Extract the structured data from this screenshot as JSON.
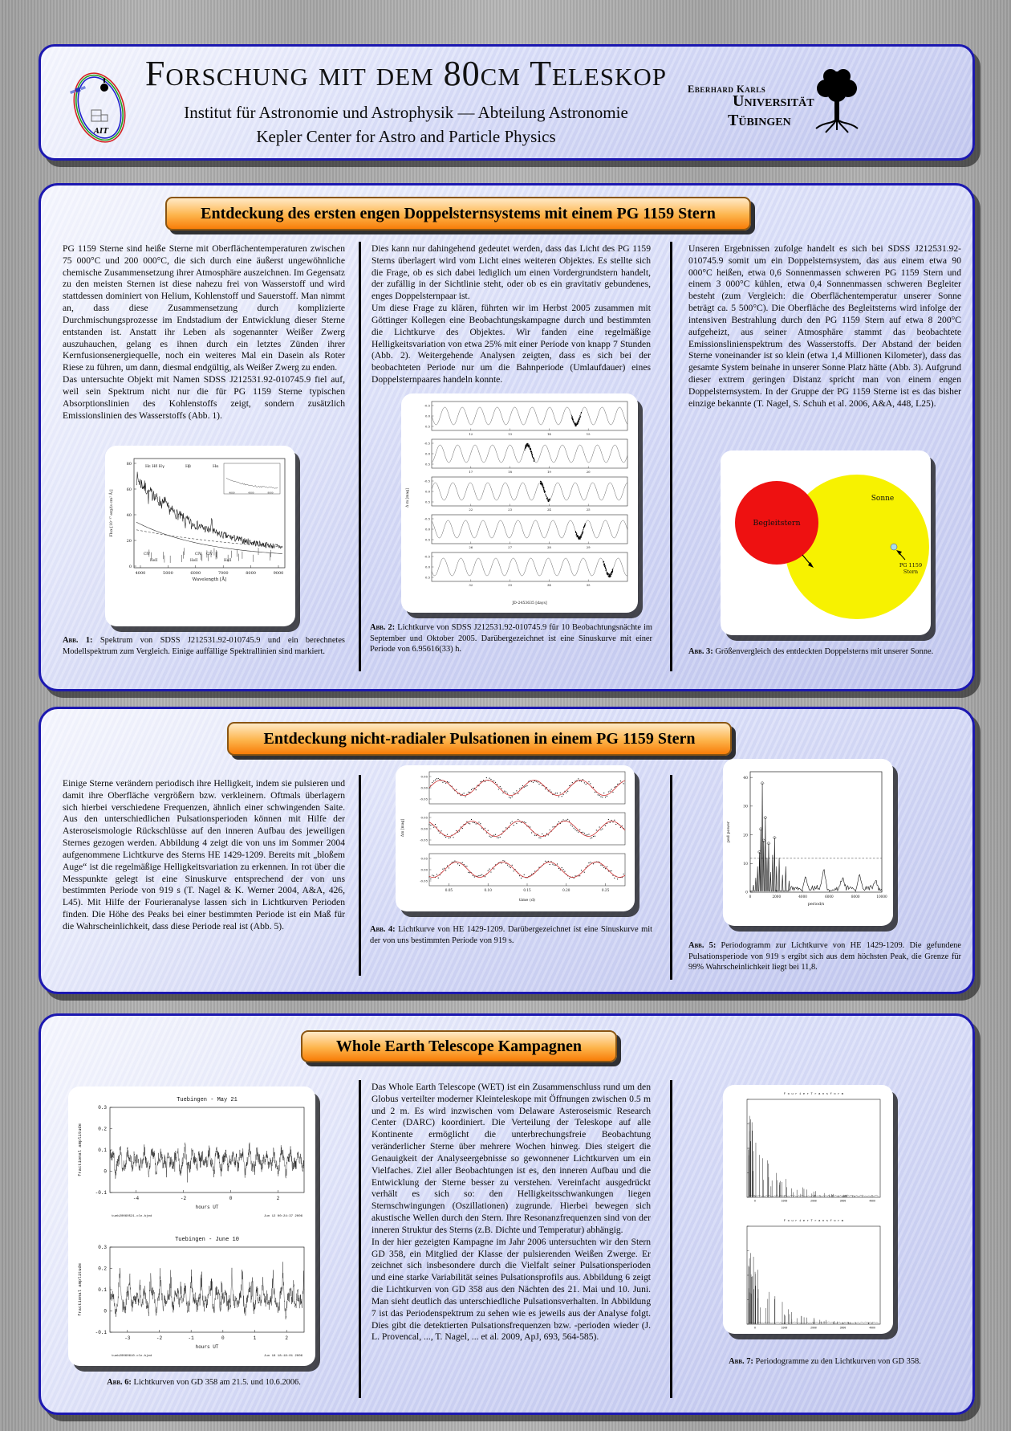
{
  "header": {
    "title": "Forschung mit dem 80cm Teleskop",
    "subtitle1": "Institut für Astronomie und Astrophysik — Abteilung Astronomie",
    "subtitle2": "Kepler Center for Astro and Particle Physics",
    "university": {
      "line1": "Eberhard Karls",
      "line2": "Universität",
      "line3": "Tübingen"
    }
  },
  "section1": {
    "banner": "Entdeckung des ersten engen Doppelsternsystems mit einem PG 1159 Stern",
    "col1": {
      "p1": "PG 1159 Sterne sind heiße Sterne mit Oberflächentemperaturen zwischen 75 000°C und 200 000°C, die sich durch eine äußerst ungewöhnliche chemische Zusammensetzung ihrer Atmosphäre auszeichnen. Im Gegensatz zu den meisten Sternen ist diese nahezu frei von Wasserstoff und wird stattdessen dominiert von Helium, Kohlenstoff und Sauerstoff. Man nimmt an, dass diese Zusammensetzung durch komplizierte Durchmischungsprozesse im Endstadium der Entwicklung dieser Sterne entstanden ist. Anstatt ihr Leben als sogenannter Weißer Zwerg auszuhauchen, gelang es ihnen durch ein letztes Zünden ihrer Kernfusionsenergiequelle, noch ein weiteres Mal ein Dasein als Roter Riese zu führen, um dann, diesmal endgültig, als Weißer Zwerg zu enden.",
      "p2": "Das untersuchte Objekt mit Namen SDSS J212531.92-010745.9 fiel auf, weil sein Spektrum nicht nur die für PG 1159 Sterne typischen Absorptionslinien des Kohlenstoffs zeigt, sondern zusätzlich Emissionslinien des Wasserstoffs (Abb. 1)."
    },
    "col2": {
      "p1": "Dies kann nur dahingehend gedeutet werden, dass das Licht des PG 1159 Sterns überlagert wird vom Licht eines weiteren Objektes. Es stellte sich die Frage, ob es sich dabei lediglich um einen Vordergrundstern handelt, der zufällig in der Sichtlinie steht, oder ob es ein gravitativ gebundenes, enges Doppelsternpaar ist.",
      "p2": "Um diese Frage zu klären, führten wir im Herbst 2005 zusammen mit Göttinger Kollegen eine Beobachtungskampagne durch und bestimmten die Lichtkurve des Objektes. Wir fanden eine regelmäßige Helligkeitsvariation von etwa 25% mit einer Periode von knapp 7 Stunden (Abb. 2). Weitergehende Analysen zeigten, dass es sich bei der beobachteten Periode nur um die Bahnperiode (Umlaufdauer) eines Doppelsternpaares handeln konnte."
    },
    "col3": {
      "p1": "Unseren Ergebnissen zufolge handelt es sich bei SDSS J212531.92-010745.9 somit um ein Doppelsternsystem, das aus einem etwa 90 000°C heißen, etwa 0,6 Sonnenmassen schweren PG 1159 Stern und einem 3 000°C kühlen, etwa 0,4 Sonnenmassen schweren Begleiter besteht (zum Vergleich: die Oberflächentemperatur unserer Sonne beträgt ca. 5 500°C). Die Oberfläche des Begleitsterns wird infolge der intensiven Bestrahlung durch den PG 1159 Stern auf etwa 8 200°C aufgeheizt, aus seiner Atmosphäre stammt das beobachtete Emissionslinienspektrum des Wasserstoffs. Der Abstand der beiden Sterne voneinander ist so klein (etwa 1,4 Millionen Kilometer), dass das gesamte System beinahe in unserer Sonne Platz hätte (Abb. 3). Aufgrund dieser extrem geringen Distanz spricht man von einem engen Doppelsternsystem. In der Gruppe der PG 1159 Sterne ist es das bisher einzige bekannte (T. Nagel, S. Schuh et al. 2006, A&A, 448, L25)."
    },
    "fig1": {
      "label": "Abb. 1:",
      "caption": "Spektrum von SDSS J212531.92-010745.9 und ein berechnetes Modellspektrum zum Vergleich. Einige auffällige Spektrallinien sind markiert.",
      "xlabel": "Wavelength [Å]",
      "ylabel": "Flux [10⁻¹⁷ erg/(s cm² Å)]",
      "xticks": [
        "4000",
        "5000",
        "6000",
        "7000",
        "8000",
        "9000"
      ],
      "yticks": [
        "0",
        "20",
        "40",
        "60",
        "80"
      ],
      "top_labels": [
        "Hε Hδ Hγ",
        "Hβ",
        "Hα"
      ],
      "civ_labels": [
        "CIV",
        "CIV",
        "CIV"
      ],
      "heii_labels": [
        "HeII",
        "HeII",
        "HeII"
      ]
    },
    "fig2": {
      "label": "Abb. 2:",
      "caption": "Lichtkurve von SDSS J212531.92-010745.9 für 10 Beobachtungsnächte im September und Oktober 2005. Darübergezeichnet ist eine Sinuskurve mit einer Periode von 6.95616(33) h.",
      "xlabel": "JD-2453635 [days]",
      "ylabel": "Δ m [mag]",
      "yticks": [
        "-0.5",
        "0.0",
        "0.5"
      ],
      "row_ticks": [
        [
          "12",
          "13",
          "14",
          "15"
        ],
        [
          "17",
          "18",
          "19",
          "20"
        ],
        [
          "22",
          "23",
          "24",
          "25"
        ],
        [
          "26",
          "27",
          "28",
          "29"
        ],
        [
          "32",
          "33",
          "34",
          "35"
        ]
      ]
    },
    "fig3": {
      "label": "Abb. 3:",
      "caption": "Größenvergleich des entdeckten Doppelsterns mit unserer Sonne.",
      "sun_label": "Sonne",
      "companion_label": "Begleitstern",
      "pg_label1": "PG 1159",
      "pg_label2": "Stern",
      "sun_color": "#f7f200",
      "companion_color": "#ee1111",
      "pg_color": "#a8dce8"
    }
  },
  "section2": {
    "banner": "Entdeckung nicht-radialer Pulsationen in einem PG 1159 Stern",
    "col1": {
      "p1": "Einige Sterne verändern periodisch ihre Helligkeit, indem sie pulsieren und damit ihre Oberfläche vergrößern bzw. verkleinern. Oftmals überlagern sich hierbei verschiedene Frequenzen, ähnlich einer schwingenden Saite. Aus den unterschiedlichen Pulsationsperioden können mit Hilfe der Asteroseismologie Rückschlüsse auf den inneren Aufbau des jeweiligen Sternes gezogen werden. Abbildung 4 zeigt die von uns im Sommer 2004 aufgenommene Lichtkurve des Sterns HE 1429-1209. Bereits mit „bloßem Auge“ ist die regelmäßige Helligkeitsvariation zu erkennen. In rot über die Messpunkte gelegt ist eine Sinuskurve entsprechend der von uns bestimmten Periode von 919 s (T. Nagel & K. Werner 2004, A&A, 426, L45). Mit Hilfe der Fourieranalyse lassen sich in Lichtkurven Perioden finden. Die Höhe des Peaks bei einer bestimmten Periode ist ein Maß für die Wahrscheinlichkeit, dass diese Periode real ist (Abb. 5)."
    },
    "fig4": {
      "label": "Abb. 4:",
      "caption": "Lichtkurve von HE 1429-1209. Darübergezeichnet ist eine Sinuskurve mit der von uns bestimmten Periode von 919 s.",
      "xlabel": "time (d)",
      "ylabel": "Δm [mag]",
      "xticks": [
        "0.05",
        "0.10",
        "0.15",
        "0.20",
        "0.25"
      ],
      "yticks": [
        "0.05",
        "0.00",
        "-0.05"
      ]
    },
    "fig5": {
      "label": "Abb. 5:",
      "caption": "Periodogramm zur Lichtkurve von HE 1429-1209. Die gefundene Pulsationsperiode von 919 s ergibt sich aus dem höchsten Peak, die Grenze für 99% Wahrscheinlichkeit liegt bei 11,8.",
      "xlabel": "period/s",
      "ylabel": "psd power",
      "xticks": [
        "0",
        "2000",
        "4000",
        "6000",
        "8000",
        "10000"
      ],
      "yticks": [
        "0",
        "10",
        "20",
        "30",
        "40"
      ]
    }
  },
  "section3": {
    "banner": "Whole Earth Telescope Kampagnen",
    "col2": {
      "p1": "Das Whole Earth Telescope (WET) ist ein Zusammenschluss rund um den Globus verteilter moderner Kleinteleskope mit Öffnungen zwischen 0.5 m und 2 m. Es wird inzwischen vom Delaware Asteroseismic Research Center (DARC) koordiniert. Die Verteilung der Teleskope auf alle Kontinente ermöglicht die unterbrechungsfreie Beobachtung veränderlicher Sterne über mehrere Wochen hinweg. Dies steigert die Genauigkeit der Analyseergebnisse so gewonnener Lichtkurven um ein Vielfaches. Ziel aller Beobachtungen ist es, den inneren Aufbau und die Entwicklung der Sterne besser zu verstehen. Vereinfacht ausgedrückt verhält es sich so: den Helligkeitsschwankungen liegen Sternschwingungen (Oszillationen) zugrunde. Hierbei bewegen sich akustische Wellen durch den Stern. Ihre Resonanzfrequenzen sind von der inneren Struktur des Sterns (z.B. Dichte und Temperatur) abhängig.",
      "p2": "In der hier gezeigten Kampagne im Jahr 2006 untersuchten wir den Stern GD 358, ein Mitglied der Klasse der pulsierenden Weißen Zwerge. Er zeichnet sich insbesondere durch die Vielfalt seiner Pulsationsperioden und eine starke Variabilität seines Pulsationsprofils aus. Abbildung 6 zeigt die Lichtkurven von GD 358 aus den Nächten des 21. Mai und 10. Juni. Man sieht deutlich das unterschiedliche Pulsationsverhalten. In Abbildung 7 ist das Periodenspektrum zu sehen wie es jeweils aus der Analyse folgt. Dies gibt die detektierten Pulsationsfrequenzen bzw. -perioden wieder (J. L. Provencal, ..., T. Nagel, ... et al. 2009, ApJ, 693, 564-585)."
    },
    "fig6": {
      "label": "Abb. 6:",
      "caption": "Lichtkurven von GD 358 am 21.5. und 10.6.2006.",
      "xlabel": "hours UT",
      "ylabel": "fractional amplitude",
      "yticks": [
        "0.3",
        "0.2",
        "0.1",
        "0",
        "-0.1"
      ],
      "panelA": {
        "title": "Tuebingen  - May 21",
        "xticks": [
          "-4",
          "-2",
          "0",
          "2"
        ],
        "foot_left": "tueb20060521.cln.bjed",
        "foot_right": "Jun 12 00:24:37 2006"
      },
      "panelB": {
        "title": "Tuebingen  - June 10",
        "xticks": [
          "-3",
          "-2",
          "-1",
          "0",
          "1",
          "2"
        ],
        "foot_left": "tueb20060610.cln.bjed",
        "foot_right": "Jun 18 18:18:01 2006"
      }
    },
    "fig7": {
      "label": "Abb. 7:",
      "caption": "Periodogramme zu den Lichtkurven von GD 358.",
      "panel_title": "F o u r i e r   T r a n s f o r m",
      "xticks": [
        "0",
        "1000",
        "2000",
        "3000",
        "4000"
      ]
    }
  }
}
